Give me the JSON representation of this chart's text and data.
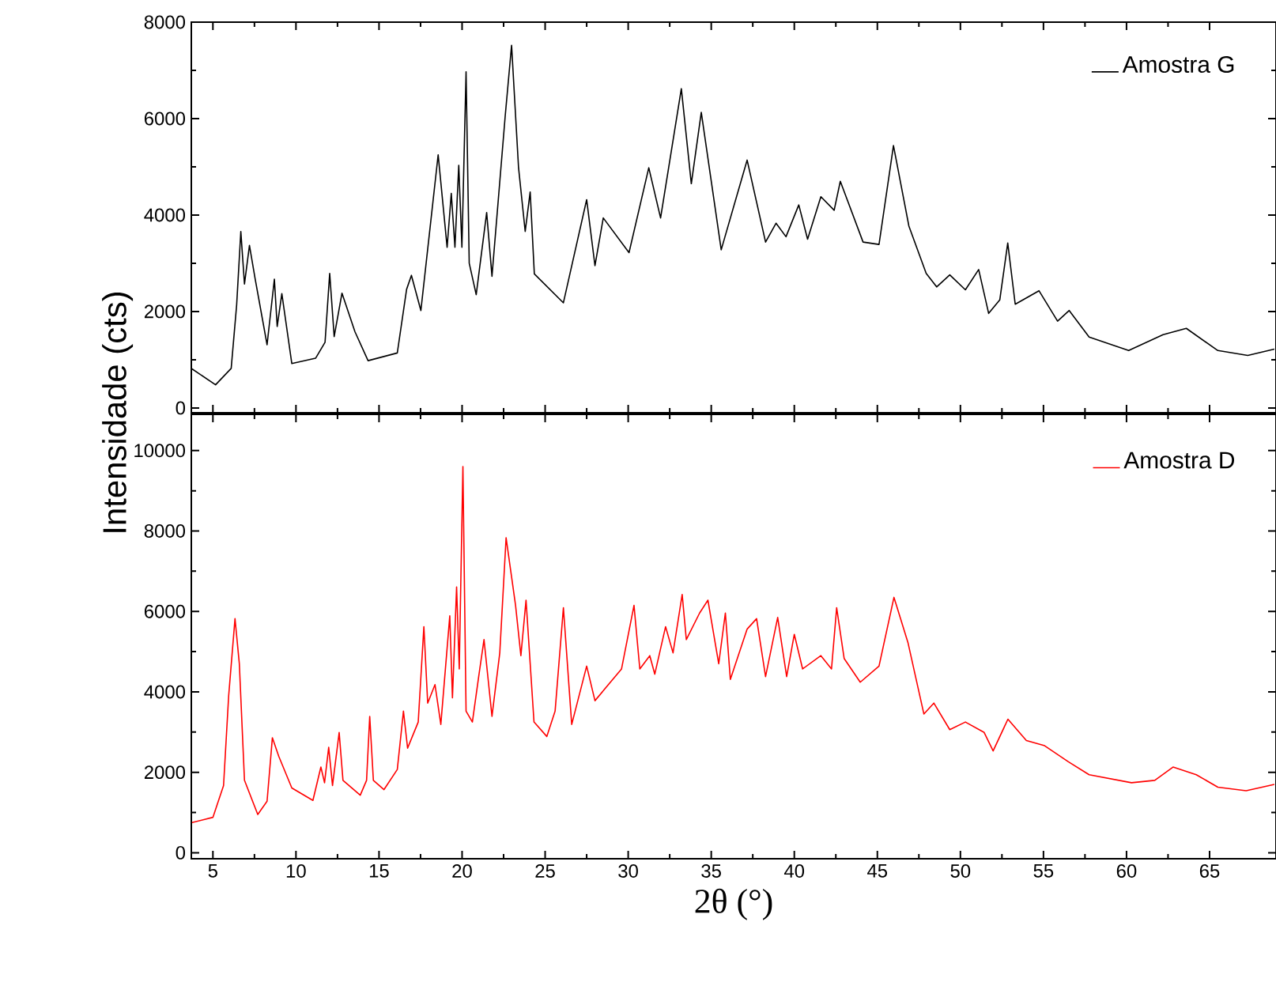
{
  "chart_data": [
    {
      "type": "line",
      "ylabel": "Intensidade (cts)",
      "legend": "top right",
      "tick_labels": "y",
      "xlim": [
        3.7,
        69
      ],
      "xticks": [
        5,
        10,
        15,
        20,
        25,
        30,
        35,
        40,
        45,
        50,
        55,
        60,
        65
      ],
      "ylim": [
        -100,
        8000
      ],
      "yticks": [
        0,
        2000,
        4000,
        6000,
        8000
      ],
      "series": [
        {
          "name": "Amostra G",
          "color": "#000000",
          "x": [
            3.74,
            5.16,
            6.1,
            6.43,
            6.68,
            6.9,
            7.2,
            7.54,
            8.26,
            8.7,
            8.87,
            9.15,
            9.75,
            11.18,
            11.75,
            12.03,
            12.3,
            12.77,
            13.55,
            14.34,
            16.1,
            16.66,
            16.95,
            17.52,
            18.56,
            19.1,
            19.35,
            19.57,
            19.8,
            19.99,
            20.24,
            20.43,
            20.85,
            21.48,
            21.8,
            22.6,
            22.98,
            23.4,
            23.8,
            24.1,
            24.35,
            26.1,
            27.5,
            28.0,
            28.5,
            30.05,
            31.24,
            31.95,
            33.2,
            33.8,
            34.4,
            35.6,
            37.16,
            38.27,
            38.9,
            39.5,
            40.27,
            40.8,
            41.6,
            42.4,
            42.77,
            44.14,
            45.1,
            45.97,
            46.9,
            47.94,
            48.57,
            49.36,
            50.3,
            51.1,
            51.7,
            52.37,
            52.85,
            53.3,
            54.73,
            55.85,
            56.55,
            57.75,
            60.13,
            62.2,
            63.6,
            65.5,
            67.3,
            68.9
          ],
          "values": [
            810,
            480,
            820,
            2140,
            3660,
            2570,
            3370,
            2680,
            1310,
            2670,
            1690,
            2370,
            920,
            1030,
            1360,
            2790,
            1480,
            2380,
            1580,
            980,
            1140,
            2460,
            2750,
            2020,
            5250,
            3330,
            4450,
            3330,
            5030,
            3330,
            6970,
            3000,
            2350,
            4050,
            2730,
            6070,
            7520,
            4980,
            3660,
            4480,
            2780,
            2180,
            4320,
            2950,
            3940,
            3220,
            4980,
            3940,
            6620,
            4650,
            6130,
            3280,
            5140,
            3440,
            3830,
            3550,
            4210,
            3500,
            4380,
            4100,
            4700,
            3440,
            3390,
            5440,
            3770,
            2790,
            2510,
            2760,
            2450,
            2870,
            1960,
            2240,
            3420,
            2150,
            2430,
            1800,
            2020,
            1470,
            1190,
            1520,
            1650,
            1190,
            1090,
            1220
          ]
        }
      ]
    },
    {
      "type": "line",
      "xlabel": "2θ (°)",
      "legend": "top right",
      "xlim": [
        3.7,
        69
      ],
      "xticks": [
        5,
        10,
        15,
        20,
        25,
        30,
        35,
        40,
        45,
        50,
        55,
        60,
        65
      ],
      "ylim": [
        -150,
        10900
      ],
      "yticks": [
        0,
        2000,
        4000,
        6000,
        8000,
        10000
      ],
      "series": [
        {
          "name": "Amostra D",
          "color": "#ff0000",
          "x": [
            3.74,
            5.0,
            5.64,
            5.95,
            6.33,
            6.59,
            6.9,
            7.7,
            8.26,
            8.58,
            8.96,
            9.75,
            11.02,
            11.5,
            11.72,
            11.97,
            12.2,
            12.6,
            12.83,
            13.87,
            14.25,
            14.44,
            14.66,
            15.3,
            16.1,
            16.47,
            16.72,
            17.36,
            17.7,
            17.93,
            18.37,
            18.72,
            19.26,
            19.42,
            19.67,
            19.83,
            20.05,
            20.24,
            20.62,
            21.0,
            21.32,
            21.8,
            22.27,
            22.65,
            23.22,
            23.54,
            23.85,
            24.33,
            25.1,
            25.6,
            26.1,
            26.6,
            27.5,
            28.0,
            29.6,
            30.35,
            30.7,
            31.3,
            31.6,
            32.25,
            32.7,
            33.25,
            33.5,
            34.3,
            34.8,
            35.45,
            35.85,
            36.15,
            37.16,
            37.73,
            38.27,
            39.0,
            39.54,
            40.0,
            40.5,
            41.6,
            42.24,
            42.55,
            43.0,
            43.97,
            45.1,
            46.0,
            46.84,
            47.8,
            48.4,
            49.36,
            50.3,
            51.43,
            51.97,
            52.86,
            53.97,
            55.07,
            56.5,
            57.75,
            60.3,
            61.7,
            62.8,
            64.2,
            65.5,
            67.2,
            68.9
          ],
          "values": [
            750,
            880,
            1670,
            3910,
            5820,
            4700,
            1800,
            950,
            1280,
            2860,
            2400,
            1610,
            1300,
            2130,
            1740,
            2620,
            1670,
            2990,
            1800,
            1430,
            1800,
            3390,
            1800,
            1570,
            2070,
            3520,
            2600,
            3250,
            5620,
            3720,
            4180,
            3190,
            5890,
            3850,
            6610,
            4570,
            9600,
            3520,
            3250,
            4380,
            5300,
            3390,
            4970,
            7830,
            6150,
            4900,
            6280,
            3250,
            2890,
            3520,
            6090,
            3190,
            4640,
            3780,
            4570,
            6150,
            4570,
            4900,
            4440,
            5620,
            4970,
            6420,
            5300,
            5960,
            6280,
            4700,
            5960,
            4310,
            5560,
            5820,
            4380,
            5850,
            4380,
            5430,
            4570,
            4900,
            4570,
            6090,
            4830,
            4240,
            4640,
            6350,
            5230,
            3450,
            3720,
            3060,
            3250,
            2990,
            2530,
            3320,
            2790,
            2660,
            2260,
            1940,
            1740,
            1800,
            2130,
            1940,
            1630,
            1540,
            1700
          ]
        }
      ]
    }
  ]
}
